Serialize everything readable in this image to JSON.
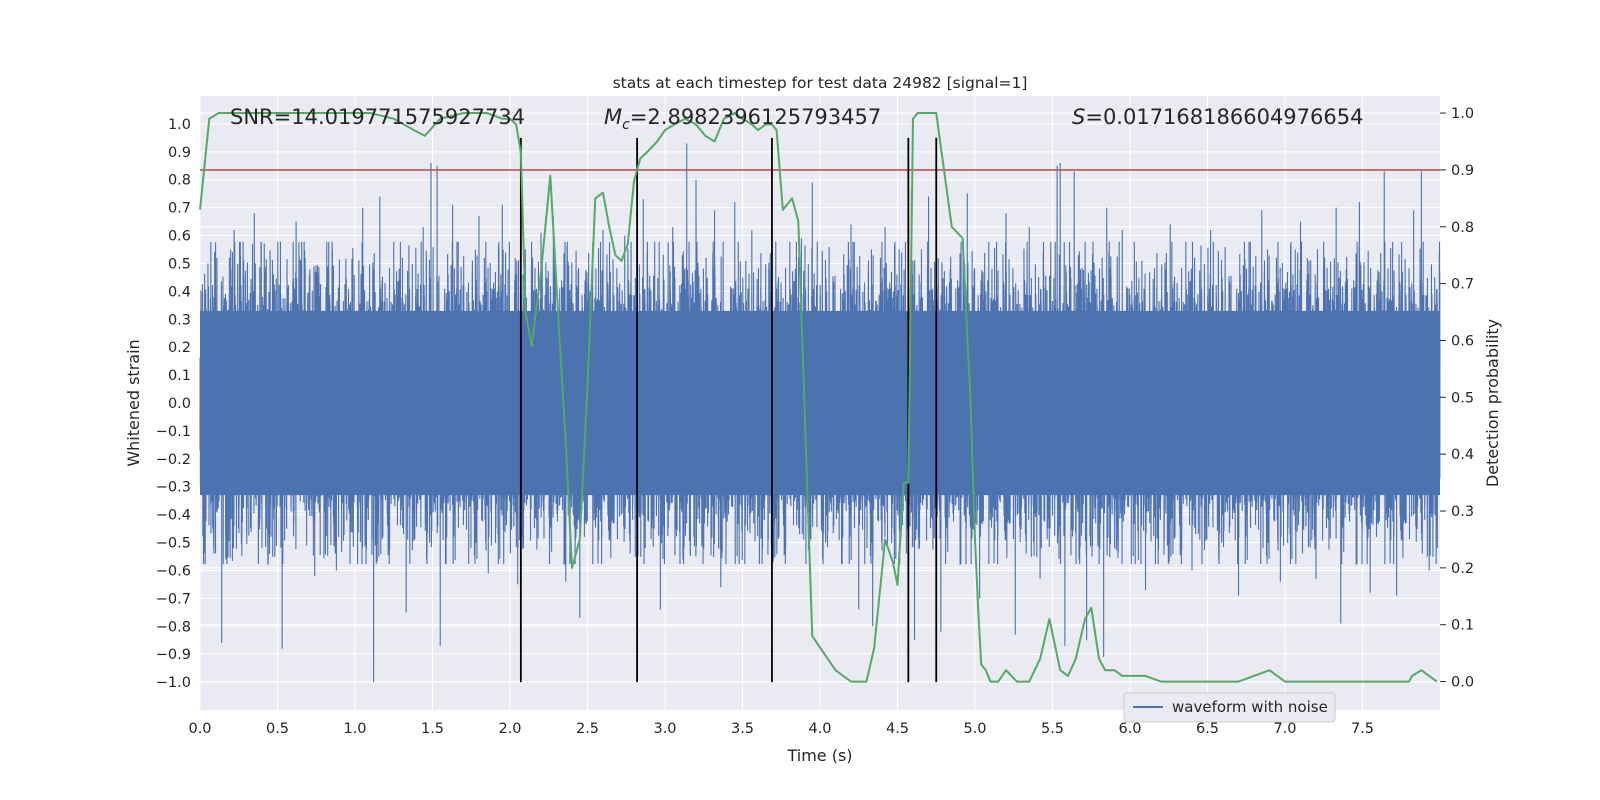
{
  "chart_data": {
    "type": "line",
    "title": "stats at each timestep for test data 24982 [signal=1]",
    "xlabel": "Time (s)",
    "ylabel_left": "Whitened strain",
    "ylabel_right": "Detection probability",
    "xlim": [
      0.0,
      8.0
    ],
    "ylim_left": [
      -1.1,
      1.1
    ],
    "ylim_right": [
      -0.05,
      1.03
    ],
    "x_ticks": [
      0.0,
      0.5,
      1.0,
      1.5,
      2.0,
      2.5,
      3.0,
      3.5,
      4.0,
      4.5,
      5.0,
      5.5,
      6.0,
      6.5,
      7.0,
      7.5
    ],
    "x_tick_labels": [
      "0.0",
      "0.5",
      "1.0",
      "1.5",
      "2.0",
      "2.5",
      "3.0",
      "3.5",
      "4.0",
      "4.5",
      "5.0",
      "5.5",
      "6.0",
      "6.5",
      "7.0",
      "7.5"
    ],
    "y_left_ticks": [
      1.0,
      0.9,
      0.8,
      0.7,
      0.6,
      0.5,
      0.4,
      0.3,
      0.2,
      0.1,
      0.0,
      -0.1,
      -0.2,
      -0.3,
      -0.4,
      -0.5,
      -0.6,
      -0.7,
      -0.8,
      -0.9,
      -1.0
    ],
    "y_left_tick_labels": [
      "1.0",
      "0.9",
      "0.8",
      "0.7",
      "0.6",
      "0.5",
      "0.4",
      "0.3",
      "0.2",
      "0.1",
      "0.0",
      "−0.1",
      "−0.2",
      "−0.3",
      "−0.4",
      "−0.5",
      "−0.6",
      "−0.7",
      "−0.8",
      "−0.9",
      "−1.0"
    ],
    "y_right_ticks": [
      1.0,
      0.9,
      0.8,
      0.7,
      0.6,
      0.5,
      0.4,
      0.3,
      0.2,
      0.1,
      0.0
    ],
    "y_right_tick_labels": [
      "1.0",
      "0.9",
      "0.8",
      "0.7",
      "0.6",
      "0.5",
      "0.4",
      "0.3",
      "0.2",
      "0.1",
      "0.0"
    ],
    "annotations": {
      "snr": "SNR=14.019771575927734",
      "mc_symbol": "M",
      "mc_subscript": "c",
      "mc_value": "=2.8982396125793457",
      "s_symbol": "S",
      "s_value": "=0.017168186604976654"
    },
    "threshold": {
      "value": 0.9,
      "axis": "right",
      "color": "#c44e52"
    },
    "vertical_lines_x": [
      2.07,
      2.82,
      3.69,
      4.57,
      4.75
    ],
    "waveform": {
      "name": "waveform with noise",
      "color": "#4c72b0",
      "sample_rate": 2048,
      "dense_envelope": 0.33,
      "spikes": [
        [
          0.09,
          0.65
        ],
        [
          0.09,
          -0.54
        ],
        [
          0.14,
          -0.86
        ],
        [
          0.22,
          0.62
        ],
        [
          0.35,
          0.68
        ],
        [
          0.44,
          -0.58
        ],
        [
          0.53,
          0.71
        ],
        [
          0.53,
          -0.88
        ],
        [
          0.62,
          0.65
        ],
        [
          0.74,
          -0.62
        ],
        [
          0.88,
          0.95
        ],
        [
          0.88,
          -0.6
        ],
        [
          1.05,
          0.7
        ],
        [
          1.12,
          -1.0
        ],
        [
          1.16,
          0.74
        ],
        [
          1.33,
          -0.75
        ],
        [
          1.44,
          0.63
        ],
        [
          1.49,
          0.86
        ],
        [
          1.53,
          0.85
        ],
        [
          1.55,
          -0.87
        ],
        [
          1.63,
          0.71
        ],
        [
          1.8,
          0.67
        ],
        [
          1.86,
          -0.61
        ],
        [
          1.95,
          0.71
        ],
        [
          2.05,
          -0.65
        ],
        [
          2.2,
          0.61
        ],
        [
          2.28,
          0.67
        ],
        [
          2.36,
          -0.64
        ],
        [
          2.45,
          -0.77
        ],
        [
          2.6,
          0.62
        ],
        [
          2.74,
          0.6
        ],
        [
          2.82,
          -0.7
        ],
        [
          2.86,
          0.73
        ],
        [
          2.97,
          -0.74
        ],
        [
          3.05,
          0.63
        ],
        [
          3.14,
          0.93
        ],
        [
          3.2,
          0.8
        ],
        [
          3.32,
          0.69
        ],
        [
          3.36,
          -0.66
        ],
        [
          3.45,
          0.72
        ],
        [
          3.56,
          0.62
        ],
        [
          3.7,
          -0.56
        ],
        [
          3.88,
          0.59
        ],
        [
          3.95,
          0.79
        ],
        [
          4.02,
          -0.55
        ],
        [
          4.2,
          0.64
        ],
        [
          4.25,
          -0.74
        ],
        [
          4.34,
          -0.8
        ],
        [
          4.42,
          0.63
        ],
        [
          4.59,
          0.76
        ],
        [
          4.61,
          -0.85
        ],
        [
          4.7,
          0.74
        ],
        [
          4.78,
          -0.82
        ],
        [
          4.95,
          0.75
        ],
        [
          5.03,
          -0.7
        ],
        [
          5.2,
          0.68
        ],
        [
          5.26,
          -0.83
        ],
        [
          5.35,
          0.63
        ],
        [
          5.42,
          -0.63
        ],
        [
          5.53,
          0.85
        ],
        [
          5.55,
          0.86
        ],
        [
          5.58,
          -0.87
        ],
        [
          5.64,
          0.83
        ],
        [
          5.72,
          -0.85
        ],
        [
          5.83,
          -0.91
        ],
        [
          5.85,
          0.7
        ],
        [
          5.95,
          0.62
        ],
        [
          6.1,
          -0.67
        ],
        [
          6.26,
          0.64
        ],
        [
          6.4,
          -0.6
        ],
        [
          6.52,
          0.62
        ],
        [
          6.7,
          -0.69
        ],
        [
          6.85,
          0.69
        ],
        [
          6.97,
          -0.64
        ],
        [
          7.1,
          0.65
        ],
        [
          7.2,
          -0.63
        ],
        [
          7.33,
          0.7
        ],
        [
          7.36,
          -0.79
        ],
        [
          7.48,
          0.72
        ],
        [
          7.55,
          -0.68
        ],
        [
          7.64,
          0.83
        ],
        [
          7.72,
          -0.69
        ],
        [
          7.83,
          0.69
        ],
        [
          7.88,
          0.83
        ],
        [
          7.93,
          -0.6
        ]
      ]
    },
    "detection_probability": {
      "color": "#55a868",
      "x": [
        0.0,
        0.06,
        0.12,
        0.25,
        0.5,
        0.8,
        1.1,
        1.25,
        1.38,
        1.45,
        1.55,
        1.7,
        1.85,
        1.95,
        2.0,
        2.04,
        2.07,
        2.1,
        2.14,
        2.2,
        2.26,
        2.32,
        2.36,
        2.4,
        2.45,
        2.5,
        2.55,
        2.6,
        2.64,
        2.68,
        2.72,
        2.76,
        2.8,
        2.84,
        2.88,
        2.95,
        3.0,
        3.06,
        3.13,
        3.2,
        3.26,
        3.32,
        3.38,
        3.45,
        3.5,
        3.56,
        3.6,
        3.65,
        3.69,
        3.72,
        3.76,
        3.82,
        3.86,
        3.95,
        4.0,
        4.1,
        4.2,
        4.3,
        4.35,
        4.42,
        4.47,
        4.5,
        4.54,
        4.57,
        4.6,
        4.63,
        4.68,
        4.75,
        4.85,
        4.92,
        4.97,
        5.0,
        5.02,
        5.04,
        5.07,
        5.1,
        5.15,
        5.2,
        5.27,
        5.35,
        5.42,
        5.48,
        5.55,
        5.6,
        5.65,
        5.71,
        5.75,
        5.8,
        5.84,
        5.9,
        5.95,
        6.0,
        6.1,
        6.2,
        6.3,
        6.5,
        6.7,
        6.9,
        6.95,
        7.0,
        7.1,
        7.2,
        7.3,
        7.5,
        7.6,
        7.7,
        7.8,
        7.82,
        7.88,
        7.93,
        7.98
      ],
      "y": [
        0.83,
        0.99,
        1.0,
        1.0,
        1.0,
        1.0,
        1.0,
        0.99,
        0.97,
        0.96,
        0.99,
        1.0,
        1.0,
        0.99,
        0.99,
        0.98,
        0.93,
        0.65,
        0.59,
        0.72,
        0.89,
        0.6,
        0.42,
        0.2,
        0.25,
        0.52,
        0.85,
        0.86,
        0.8,
        0.75,
        0.74,
        0.77,
        0.88,
        0.92,
        0.93,
        0.95,
        0.97,
        0.98,
        0.99,
        0.98,
        0.96,
        0.95,
        0.99,
        1.0,
        0.99,
        0.98,
        0.97,
        0.98,
        0.98,
        0.97,
        0.83,
        0.85,
        0.81,
        0.08,
        0.06,
        0.02,
        0.0,
        0.0,
        0.06,
        0.25,
        0.21,
        0.17,
        0.35,
        0.35,
        0.99,
        1.0,
        1.0,
        1.0,
        0.8,
        0.78,
        0.5,
        0.25,
        0.13,
        0.03,
        0.02,
        0.0,
        0.0,
        0.02,
        0.0,
        0.0,
        0.04,
        0.11,
        0.02,
        0.01,
        0.04,
        0.11,
        0.13,
        0.04,
        0.02,
        0.02,
        0.01,
        0.01,
        0.01,
        0.0,
        0.0,
        0.0,
        0.0,
        0.02,
        0.01,
        0.0,
        0.0,
        0.0,
        0.0,
        0.0,
        0.0,
        0.0,
        0.0,
        0.01,
        0.02,
        0.01,
        0.0
      ]
    },
    "legend": {
      "location": "bottom-right",
      "entries": [
        "waveform with noise"
      ]
    },
    "grid": true
  }
}
